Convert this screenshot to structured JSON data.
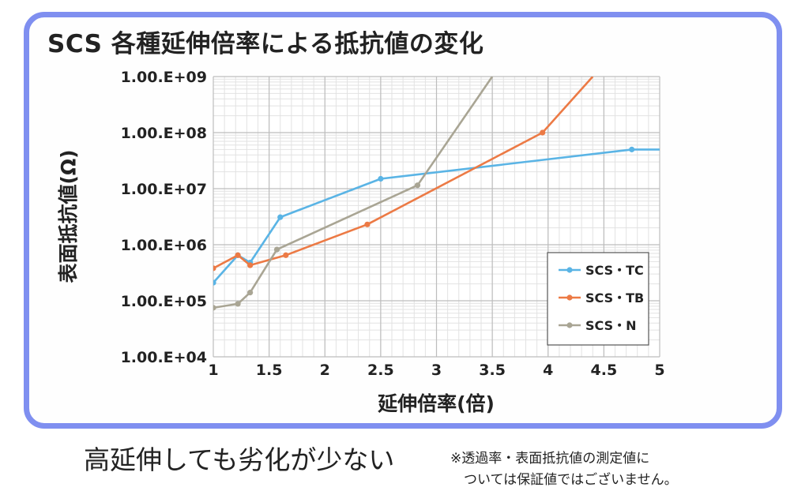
{
  "chart_data": {
    "type": "line",
    "title": "SCS 各種延伸倍率による抵抗値の変化",
    "xlabel": "延伸倍率(倍)",
    "ylabel": "表面抵抗値(Ω)",
    "x_scale": "linear",
    "y_scale": "log",
    "xlim": [
      1,
      5
    ],
    "ylim": [
      10000,
      1000000000
    ],
    "x_ticks": [
      "1",
      "1.5",
      "2",
      "2.5",
      "3",
      "3.5",
      "4",
      "4.5",
      "5"
    ],
    "y_ticks": [
      "1.00.E+04",
      "1.00.E+05",
      "1.00.E+06",
      "1.00.E+07",
      "1.00.E+08",
      "1.00.E+09"
    ],
    "grid": true,
    "legend_position": "bottom-right",
    "series": [
      {
        "name": "SCS・TC",
        "color": "#5ab4e5",
        "points": [
          [
            1,
            210000
          ],
          [
            1.22,
            650000
          ],
          [
            1.33,
            480000
          ],
          [
            1.6,
            3100000
          ],
          [
            2.5,
            15000000
          ],
          [
            4.75,
            50000000
          ],
          [
            5,
            50000000
          ]
        ],
        "markers": [
          true,
          true,
          true,
          true,
          true,
          true,
          false
        ]
      },
      {
        "name": "SCS・TB",
        "color": "#ec7a45",
        "points": [
          [
            1,
            380000
          ],
          [
            1.22,
            650000
          ],
          [
            1.33,
            430000
          ],
          [
            1.65,
            650000
          ],
          [
            2.38,
            2300000
          ],
          [
            3.95,
            100000000
          ],
          [
            4.4,
            1000000000
          ]
        ],
        "markers": [
          true,
          true,
          true,
          true,
          true,
          true,
          false
        ]
      },
      {
        "name": "SCS・N",
        "color": "#a9a594",
        "points": [
          [
            1,
            75000
          ],
          [
            1.22,
            88000
          ],
          [
            1.33,
            140000
          ],
          [
            1.57,
            820000
          ],
          [
            2.83,
            11500000
          ],
          [
            3.5,
            1000000000
          ]
        ],
        "markers": [
          true,
          true,
          true,
          true,
          true,
          false
        ]
      }
    ]
  },
  "caption": "高延伸しても劣化が少ない",
  "note": "※透過率・表面抵抗値の測定値に\n　ついては保証値ではございません。"
}
